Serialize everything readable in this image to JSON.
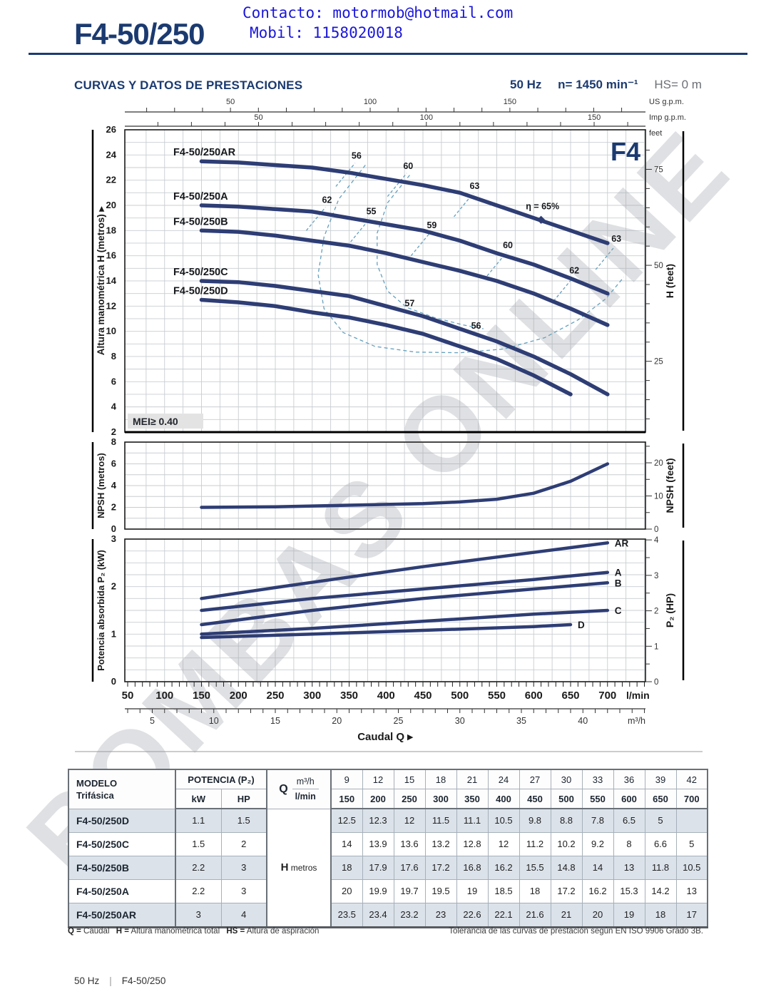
{
  "header": {
    "title": "F4-50/250",
    "contact": "Contacto: motormob@hotmail.com",
    "mobile": "Mobil: 1158020018"
  },
  "section": {
    "heading": "CURVAS Y DATOS DE PRESTACIONES",
    "freq": "50 Hz",
    "speed": "n= 1450 min⁻¹",
    "hs": "HS= 0 m"
  },
  "watermark": "BOMBAS ONLINE",
  "colors": {
    "navy": "#1b3a70",
    "curve": "#2e3d74",
    "grid": "#c9cdd0",
    "frame": "#1a1a1a",
    "eff": "#64a0bf",
    "contact_blue": "#1a16d9"
  },
  "chart_data": {
    "type": "line",
    "x_unit": "l/min",
    "top_axes": {
      "us": {
        "label": "US g.p.m.",
        "factor": 3.785,
        "major": [
          50,
          100,
          150
        ]
      },
      "imp": {
        "label": "Imp g.p.m.",
        "factor": 4.546,
        "major": [
          50,
          100,
          150
        ]
      }
    },
    "head_chart": {
      "brand": "F4",
      "mei": "MEI≥ 0.40",
      "ylabel_left": "Altura manométrica H (metros)",
      "ylabel_right": "H (feet)",
      "feet_word": "feet",
      "ylim": [
        2,
        26
      ],
      "ytick_step": 2,
      "feet_major": [
        25,
        50,
        75
      ],
      "bep_marker": {
        "q": 610,
        "h": 18.85
      },
      "curves": [
        {
          "name": "F4-50/250AR",
          "points": [
            [
              150,
              23.5
            ],
            [
              200,
              23.4
            ],
            [
              250,
              23.2
            ],
            [
              300,
              23
            ],
            [
              350,
              22.6
            ],
            [
              400,
              22.1
            ],
            [
              450,
              21.6
            ],
            [
              500,
              21
            ],
            [
              550,
              20
            ],
            [
              600,
              19
            ],
            [
              650,
              18
            ],
            [
              700,
              17
            ]
          ]
        },
        {
          "name": "F4-50/250A",
          "points": [
            [
              150,
              20
            ],
            [
              200,
              19.9
            ],
            [
              250,
              19.7
            ],
            [
              300,
              19.5
            ],
            [
              350,
              19
            ],
            [
              400,
              18.5
            ],
            [
              450,
              18
            ],
            [
              500,
              17.2
            ],
            [
              550,
              16.2
            ],
            [
              600,
              15.3
            ],
            [
              650,
              14.2
            ],
            [
              700,
              13
            ]
          ]
        },
        {
          "name": "F4-50/250B",
          "points": [
            [
              150,
              18
            ],
            [
              200,
              17.9
            ],
            [
              250,
              17.6
            ],
            [
              300,
              17.2
            ],
            [
              350,
              16.8
            ],
            [
              400,
              16.2
            ],
            [
              450,
              15.5
            ],
            [
              500,
              14.8
            ],
            [
              550,
              14
            ],
            [
              600,
              13
            ],
            [
              650,
              11.8
            ],
            [
              700,
              10.5
            ]
          ]
        },
        {
          "name": "F4-50/250C",
          "points": [
            [
              150,
              14
            ],
            [
              200,
              13.9
            ],
            [
              250,
              13.6
            ],
            [
              300,
              13.2
            ],
            [
              350,
              12.8
            ],
            [
              400,
              12
            ],
            [
              450,
              11.2
            ],
            [
              500,
              10.2
            ],
            [
              550,
              9.2
            ],
            [
              600,
              8
            ],
            [
              650,
              6.6
            ],
            [
              700,
              5
            ]
          ]
        },
        {
          "name": "F4-50/250D",
          "points": [
            [
              150,
              12.5
            ],
            [
              200,
              12.3
            ],
            [
              250,
              12
            ],
            [
              300,
              11.5
            ],
            [
              350,
              11.1
            ],
            [
              400,
              10.5
            ],
            [
              450,
              9.8
            ],
            [
              500,
              8.8
            ],
            [
              550,
              7.8
            ],
            [
              600,
              6.5
            ],
            [
              650,
              5
            ]
          ]
        }
      ],
      "efficiency_labels": [
        {
          "text": "56",
          "q": 360,
          "h": 23.7,
          "tick": true
        },
        {
          "text": "60",
          "q": 430,
          "h": 22.9,
          "tick": true
        },
        {
          "text": "63",
          "q": 520,
          "h": 21.3,
          "tick": true
        },
        {
          "text": "η = 65%",
          "q": 612,
          "h": 19.7,
          "tick": false
        },
        {
          "text": "63",
          "q": 712,
          "h": 17.1,
          "tick": true
        },
        {
          "text": "62",
          "q": 320,
          "h": 20.2,
          "tick": true
        },
        {
          "text": "55",
          "q": 380,
          "h": 19.3,
          "tick": true
        },
        {
          "text": "59",
          "q": 462,
          "h": 18.2,
          "tick": true
        },
        {
          "text": "60",
          "q": 565,
          "h": 16.6,
          "tick": true
        },
        {
          "text": "62",
          "q": 655,
          "h": 14.6,
          "tick": true
        },
        {
          "text": "57",
          "q": 432,
          "h": 12.0,
          "tick": false
        },
        {
          "text": "56",
          "q": 522,
          "h": 10.2,
          "tick": false
        }
      ],
      "efficiency_contours": [
        [
          [
            372,
            23.2
          ],
          [
            336,
            20.5
          ],
          [
            316,
            17.5
          ],
          [
            308,
            14.5
          ],
          [
            316,
            11.8
          ],
          [
            342,
            9.9
          ],
          [
            385,
            8.8
          ],
          [
            440,
            8.35
          ],
          [
            500,
            8.3
          ],
          [
            560,
            8.6
          ],
          [
            615,
            9.5
          ],
          [
            660,
            10.9
          ],
          [
            698,
            12.6
          ],
          [
            722,
            14.3
          ]
        ],
        [
          [
            432,
            22.4
          ],
          [
            402,
            20.2
          ],
          [
            388,
            17.8
          ],
          [
            388,
            15.3
          ],
          [
            402,
            13.2
          ],
          [
            428,
            11.9
          ],
          [
            465,
            11.1
          ],
          [
            505,
            10.5
          ],
          [
            532,
            10.2
          ]
        ]
      ]
    },
    "npsh_chart": {
      "ylabel_left": "NPSH (metros)",
      "ylabel_right": "NPSH (feet)",
      "ylim": [
        0,
        8
      ],
      "yticks": [
        0,
        2,
        4,
        6,
        8
      ],
      "feet_major": [
        0,
        10,
        20
      ],
      "curve": [
        [
          150,
          2.0
        ],
        [
          250,
          2.05
        ],
        [
          350,
          2.2
        ],
        [
          450,
          2.35
        ],
        [
          500,
          2.5
        ],
        [
          550,
          2.75
        ],
        [
          600,
          3.3
        ],
        [
          650,
          4.4
        ],
        [
          700,
          6.0
        ]
      ]
    },
    "power_chart": {
      "ylabel_left": "Potencia absorbida P₂ (kW)",
      "ylabel_right": "P₂ (HP)",
      "ylim": [
        0,
        3
      ],
      "yticks": [
        0,
        1,
        2,
        3
      ],
      "hp_major": [
        0,
        1,
        2,
        3,
        4
      ],
      "curves": [
        {
          "name": "AR",
          "points": [
            [
              150,
              1.75
            ],
            [
              250,
              1.98
            ],
            [
              350,
              2.2
            ],
            [
              450,
              2.42
            ],
            [
              550,
              2.62
            ],
            [
              650,
              2.82
            ],
            [
              700,
              2.92
            ]
          ]
        },
        {
          "name": "A",
          "points": [
            [
              150,
              1.5
            ],
            [
              300,
              1.75
            ],
            [
              450,
              1.95
            ],
            [
              600,
              2.15
            ],
            [
              700,
              2.3
            ]
          ]
        },
        {
          "name": "B",
          "points": [
            [
              150,
              1.2
            ],
            [
              300,
              1.5
            ],
            [
              450,
              1.75
            ],
            [
              600,
              1.95
            ],
            [
              700,
              2.08
            ]
          ]
        },
        {
          "name": "C",
          "points": [
            [
              150,
              1.0
            ],
            [
              300,
              1.12
            ],
            [
              450,
              1.27
            ],
            [
              600,
              1.42
            ],
            [
              700,
              1.5
            ]
          ]
        },
        {
          "name": "D",
          "points": [
            [
              150,
              0.93
            ],
            [
              300,
              1.0
            ],
            [
              450,
              1.08
            ],
            [
              600,
              1.16
            ],
            [
              650,
              1.2
            ]
          ]
        }
      ]
    },
    "x_axis": {
      "lmin_major": [
        50,
        100,
        150,
        200,
        250,
        300,
        350,
        400,
        450,
        500,
        550,
        600,
        650,
        700
      ],
      "lmin_label": "l/min",
      "m3h_major": [
        5,
        10,
        15,
        20,
        25,
        30,
        35,
        40
      ],
      "m3h_label": "m³/h",
      "caudal": "Caudal Q ▸"
    }
  },
  "table": {
    "modelo": "MODELO",
    "trifasica": "Trifásica",
    "potencia": "POTENCIA (P₂)",
    "kw": "kW",
    "hp": "HP",
    "q": "Q",
    "m3h": "m³/h",
    "lmin": "l/min",
    "h_label": "H",
    "h_unit": "metros",
    "flow_m3h": [
      "9",
      "12",
      "15",
      "18",
      "21",
      "24",
      "27",
      "30",
      "33",
      "36",
      "39",
      "42"
    ],
    "flow_lmin": [
      "150",
      "200",
      "250",
      "300",
      "350",
      "400",
      "450",
      "500",
      "550",
      "600",
      "650",
      "700"
    ],
    "rows": [
      {
        "model": "F4-50/250D",
        "kw": "1.1",
        "hp": "1.5",
        "values": [
          "12.5",
          "12.3",
          "12",
          "11.5",
          "11.1",
          "10.5",
          "9.8",
          "8.8",
          "7.8",
          "6.5",
          "5",
          ""
        ]
      },
      {
        "model": "F4-50/250C",
        "kw": "1.5",
        "hp": "2",
        "values": [
          "14",
          "13.9",
          "13.6",
          "13.2",
          "12.8",
          "12",
          "11.2",
          "10.2",
          "9.2",
          "8",
          "6.6",
          "5"
        ]
      },
      {
        "model": "F4-50/250B",
        "kw": "2.2",
        "hp": "3",
        "values": [
          "18",
          "17.9",
          "17.6",
          "17.2",
          "16.8",
          "16.2",
          "15.5",
          "14.8",
          "14",
          "13",
          "11.8",
          "10.5"
        ]
      },
      {
        "model": "F4-50/250A",
        "kw": "2.2",
        "hp": "3",
        "values": [
          "20",
          "19.9",
          "19.7",
          "19.5",
          "19",
          "18.5",
          "18",
          "17.2",
          "16.2",
          "15.3",
          "14.2",
          "13"
        ]
      },
      {
        "model": "F4-50/250AR",
        "kw": "3",
        "hp": "4",
        "values": [
          "23.5",
          "23.4",
          "23.2",
          "23",
          "22.6",
          "22.1",
          "21.6",
          "21",
          "20",
          "19",
          "18",
          "17"
        ]
      }
    ]
  },
  "notes": {
    "legend": [
      {
        "k": "Q =",
        "v": "Caudal"
      },
      {
        "k": "H =",
        "v": "Altura manométrica total"
      },
      {
        "k": "HS =",
        "v": "Altura de aspiración"
      }
    ],
    "tolerance": "Tolerancia de las curvas de prestación según EN ISO 9906 Grado 3B."
  },
  "footer": {
    "freq": "50 Hz",
    "model": "F4-50/250"
  }
}
